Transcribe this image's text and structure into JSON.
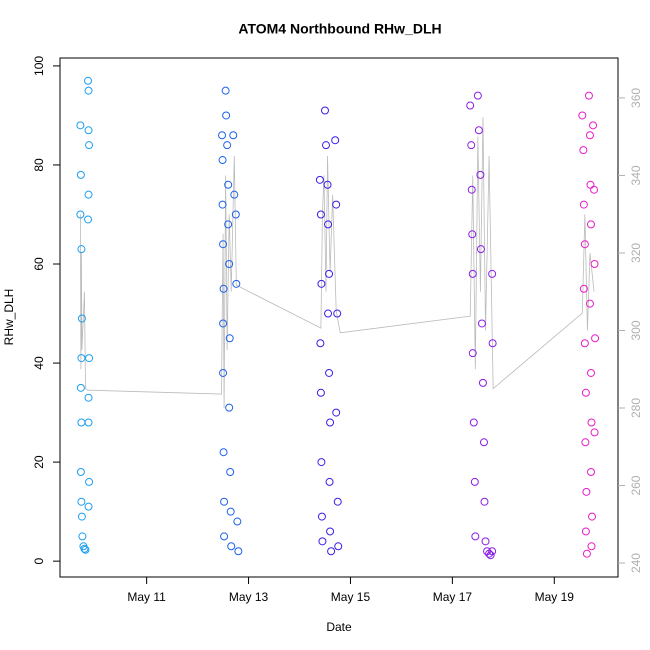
{
  "chart_data": {
    "type": "scatter",
    "title": "ATOM4 Northbound RHw_DLH",
    "x_label": "Date",
    "y_label": "RHw_DLH",
    "xlim": [
      9.3,
      20.25
    ],
    "xticks": [
      {
        "value": 11,
        "label": "May 11"
      },
      {
        "value": 13,
        "label": "May 13"
      },
      {
        "value": 15,
        "label": "May 15"
      },
      {
        "value": 17,
        "label": "May 17"
      },
      {
        "value": 19,
        "label": "May 19"
      }
    ],
    "ylim": [
      -3.2,
      101.6
    ],
    "yticks": [
      0,
      20,
      40,
      60,
      80,
      100
    ],
    "y2lim": [
      236.4,
      370.3
    ],
    "y2ticks": [
      240,
      260,
      280,
      300,
      320,
      340,
      360
    ],
    "y2_color": "#b0b0b0",
    "series": [
      {
        "type": "scatter",
        "color": "#1e9ff0",
        "x": [
          9.7,
          9.71,
          9.7,
          9.72,
          9.73,
          9.72,
          9.71,
          9.72,
          9.71,
          9.72,
          9.73,
          9.74,
          9.76,
          9.78,
          9.8,
          9.85,
          9.86,
          9.86,
          9.87,
          9.86,
          9.85,
          9.87,
          9.86,
          9.86,
          9.87,
          9.86
        ],
        "values": [
          88,
          78,
          70,
          63,
          49,
          41,
          35,
          28,
          18,
          12,
          9,
          5,
          3,
          2.5,
          2.3,
          97,
          95,
          87,
          84,
          74,
          69,
          41,
          33,
          28,
          16,
          11
        ]
      },
      {
        "type": "scatter",
        "color": "#1f62ea",
        "x": [
          12.48,
          12.49,
          12.49,
          12.5,
          12.51,
          12.5,
          12.5,
          12.51,
          12.52,
          12.52,
          12.55,
          12.56,
          12.58,
          12.6,
          12.6,
          12.62,
          12.63,
          12.62,
          12.64,
          12.65,
          12.66,
          12.7,
          12.72,
          12.75,
          12.76,
          12.78,
          12.8
        ],
        "values": [
          86,
          81,
          72,
          64,
          55,
          48,
          38,
          22,
          12,
          5,
          95,
          90,
          84,
          76,
          68,
          60,
          45,
          31,
          18,
          10,
          3,
          86,
          74,
          70,
          56,
          8,
          2
        ]
      },
      {
        "type": "scatter",
        "color": "#3a20e8",
        "x": [
          14.4,
          14.42,
          14.43,
          14.41,
          14.42,
          14.43,
          14.44,
          14.45,
          14.5,
          14.52,
          14.55,
          14.56,
          14.58,
          14.56,
          14.58,
          14.6,
          14.59,
          14.6,
          14.62,
          14.7,
          14.72,
          14.74,
          14.72,
          14.75,
          14.76
        ],
        "values": [
          77,
          70,
          56,
          44,
          34,
          20,
          9,
          4,
          91,
          84,
          76,
          68,
          58,
          50,
          38,
          28,
          16,
          6,
          2,
          85,
          72,
          50,
          30,
          12,
          3
        ]
      },
      {
        "type": "scatter",
        "color": "#8a1ee8",
        "x": [
          17.35,
          17.37,
          17.38,
          17.39,
          17.4,
          17.4,
          17.42,
          17.44,
          17.45,
          17.5,
          17.52,
          17.55,
          17.56,
          17.58,
          17.6,
          17.62,
          17.63,
          17.65,
          17.68,
          17.72,
          17.75,
          17.78,
          17.79,
          17.78
        ],
        "values": [
          92,
          84,
          75,
          66,
          58,
          42,
          28,
          16,
          5,
          94,
          87,
          78,
          63,
          48,
          36,
          24,
          12,
          4,
          2,
          1.5,
          1.2,
          58,
          44,
          2
        ]
      },
      {
        "type": "scatter",
        "color": "#e81ec8",
        "x": [
          19.55,
          19.57,
          19.58,
          19.6,
          19.58,
          19.6,
          19.62,
          19.61,
          19.63,
          19.62,
          19.64,
          19.68,
          19.7,
          19.71,
          19.72,
          19.7,
          19.72,
          19.73,
          19.72,
          19.74,
          19.73,
          19.76,
          19.78,
          19.79,
          19.8,
          19.79
        ],
        "values": [
          90,
          83,
          72,
          64,
          55,
          44,
          34,
          24,
          14,
          6,
          1.5,
          94,
          86,
          76,
          68,
          52,
          38,
          28,
          18,
          9,
          3,
          88,
          75,
          60,
          45,
          26
        ]
      },
      {
        "type": "line",
        "axis": "y2",
        "color": "#bbbbbb",
        "x": [
          9.7,
          9.71,
          9.72,
          9.73,
          9.78,
          9.8,
          9.85,
          12.47,
          12.48,
          12.5,
          12.52,
          12.55,
          12.58,
          12.62,
          12.66,
          12.72,
          12.76,
          14.42,
          14.45,
          14.48,
          14.52,
          14.55,
          14.6,
          14.65,
          14.72,
          14.8,
          17.35,
          17.4,
          17.45,
          17.5,
          17.55,
          17.6,
          17.65,
          17.72,
          17.8,
          19.55,
          19.6,
          19.65,
          19.7,
          19.78
        ],
        "values": [
          330,
          290,
          320,
          295,
          310,
          285,
          284.6,
          283.6,
          300,
          325,
          280,
          340,
          295,
          330,
          310,
          345,
          311.7,
          300.6,
          330,
          340,
          310,
          345,
          315,
          335,
          305,
          299.4,
          303.7,
          340,
          290,
          350,
          310,
          355,
          300,
          345,
          285,
          304.5,
          330,
          300,
          320,
          310
        ]
      }
    ]
  }
}
